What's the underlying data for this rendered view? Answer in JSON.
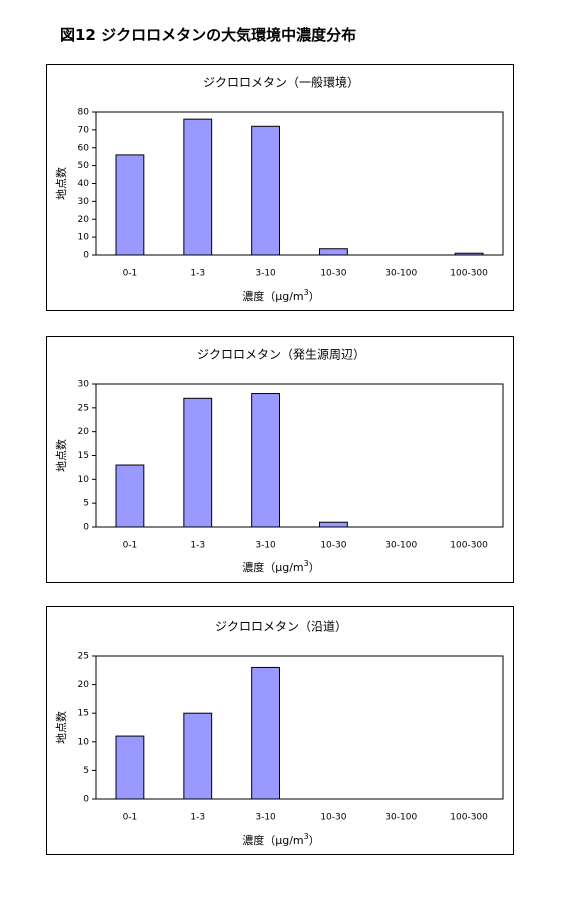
{
  "figure_title": "図12 ジクロロメタンの大気環境中濃度分布",
  "chart_data": [
    {
      "type": "bar",
      "title": "ジクロロメタン（一般環境）",
      "categories": [
        "0-1",
        "1-3",
        "3-10",
        "10-30",
        "30-100",
        "100-300"
      ],
      "values": [
        56,
        76,
        72,
        3.5,
        0,
        1
      ],
      "ylim": [
        0,
        80
      ],
      "yticks": [
        0,
        10,
        20,
        30,
        40,
        50,
        60,
        70,
        80
      ],
      "ylabel": "地点数",
      "xlabel": "濃度（μg/m",
      "xlabel_sup": "3",
      "xlabel_end": "）",
      "bar_color": "#9999ff",
      "grid": false
    },
    {
      "type": "bar",
      "title": "ジクロロメタン（発生源周辺）",
      "categories": [
        "0-1",
        "1-3",
        "3-10",
        "10-30",
        "30-100",
        "100-300"
      ],
      "values": [
        13,
        27,
        28,
        1,
        0,
        0
      ],
      "ylim": [
        0,
        30
      ],
      "yticks": [
        0,
        5,
        10,
        15,
        20,
        25,
        30
      ],
      "ylabel": "地点数",
      "xlabel": "濃度（μg/m",
      "xlabel_sup": "3",
      "xlabel_end": "）",
      "bar_color": "#9999ff",
      "grid": false
    },
    {
      "type": "bar",
      "title": "ジクロロメタン（沿道）",
      "categories": [
        "0-1",
        "1-3",
        "3-10",
        "10-30",
        "30-100",
        "100-300"
      ],
      "values": [
        11,
        15,
        23,
        0,
        0,
        0
      ],
      "ylim": [
        0,
        25
      ],
      "yticks": [
        0,
        5,
        10,
        15,
        20,
        25
      ],
      "ylabel": "地点数",
      "xlabel": "濃度（μg/m",
      "xlabel_sup": "3",
      "xlabel_end": "）",
      "bar_color": "#9999ff",
      "grid": false
    }
  ]
}
